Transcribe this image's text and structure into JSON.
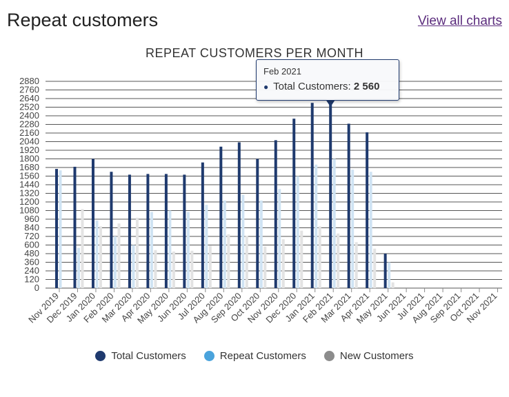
{
  "header": {
    "title": "Repeat customers",
    "view_all_link": "View all charts"
  },
  "tooltip": {
    "date": "Feb 2021",
    "series": "Total Customers:",
    "value": "2 560"
  },
  "colors": {
    "total": "#1f3a6e",
    "repeat": "#cfe3f3",
    "new": "#e3e3e3",
    "legend_repeat": "#4aa3dc",
    "legend_new": "#8c8c8c",
    "grid": "#555555"
  },
  "chart_data": {
    "type": "bar",
    "title": "REPEAT CUSTOMERS PER MONTH",
    "categories": [
      "Nov 2019",
      "Dec 2019",
      "Jan 2020",
      "Feb 2020",
      "Mar 2020",
      "Apr 2020",
      "May 2020",
      "Jun 2020",
      "Jul 2020",
      "Aug 2020",
      "Sep 2020",
      "Oct 2020",
      "Nov 2020",
      "Dec 2020",
      "Jan 2021",
      "Feb 2021",
      "Mar 2021",
      "Apr 2021",
      "May 2021",
      "Jun 2021",
      "Jul 2021",
      "Aug 2021",
      "Sep 2021",
      "Oct 2021",
      "Nov 2021"
    ],
    "series": [
      {
        "name": "Total Customers",
        "values": [
          1660,
          1690,
          1800,
          1620,
          1580,
          1590,
          1590,
          1580,
          1750,
          1970,
          2030,
          1800,
          2060,
          2360,
          2580,
          2560,
          2290,
          2170,
          480,
          0,
          0,
          0,
          0,
          0,
          0
        ]
      },
      {
        "name": "Repeat Customers",
        "values": [
          1640,
          560,
          940,
          720,
          600,
          1060,
          1080,
          1060,
          1160,
          1220,
          1300,
          1220,
          1380,
          1560,
          1720,
          1800,
          1650,
          1620,
          360,
          0,
          0,
          0,
          0,
          0,
          0
        ]
      },
      {
        "name": "New Customers",
        "values": [
          0,
          1100,
          860,
          900,
          980,
          530,
          510,
          520,
          590,
          750,
          730,
          580,
          680,
          800,
          860,
          760,
          640,
          550,
          80,
          0,
          0,
          0,
          0,
          0,
          0
        ]
      }
    ],
    "yticks": [
      0,
      120,
      240,
      360,
      480,
      600,
      720,
      840,
      960,
      1080,
      1200,
      1320,
      1440,
      1560,
      1680,
      1800,
      1920,
      2040,
      2160,
      2280,
      2400,
      2520,
      2640,
      2760,
      2880
    ],
    "ylim": [
      0,
      2880
    ],
    "legend_position": "bottom"
  }
}
